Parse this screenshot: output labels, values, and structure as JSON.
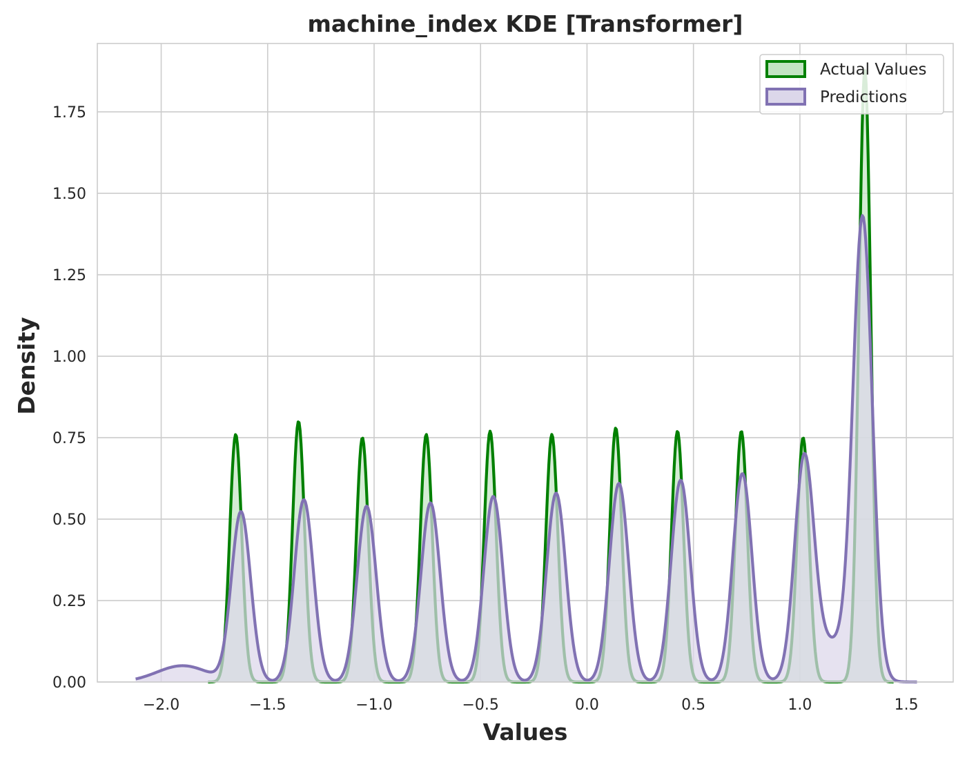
{
  "chart_data": {
    "type": "area",
    "title": "machine_index KDE [Transformer]",
    "xlabel": "Values",
    "ylabel": "Density",
    "xlim": [
      -2.3,
      1.72
    ],
    "ylim": [
      0,
      1.96
    ],
    "xticks": [
      -2.0,
      -1.5,
      -1.0,
      -0.5,
      0.0,
      0.5,
      1.0,
      1.5
    ],
    "xtick_labels": [
      "−2.0",
      "−1.5",
      "−1.0",
      "−0.5",
      "0.0",
      "0.5",
      "1.0",
      "1.5"
    ],
    "yticks": [
      0,
      0.25,
      0.5,
      0.75,
      1.0,
      1.25,
      1.5,
      1.75
    ],
    "ytick_labels": [
      "0.00",
      "0.25",
      "0.50",
      "0.75",
      "1.00",
      "1.25",
      "1.50",
      "1.75"
    ],
    "grid": true,
    "legend_position": "top-right",
    "series": [
      {
        "name": "Actual Values",
        "color": "#008000",
        "fill": "#c3e4c3",
        "x_range": [
          -1.78,
          1.44
        ],
        "peaks": [
          {
            "center": -1.65,
            "height": 0.76,
            "width": 0.028
          },
          {
            "center": -1.355,
            "height": 0.8,
            "width": 0.028
          },
          {
            "center": -1.055,
            "height": 0.75,
            "width": 0.028
          },
          {
            "center": -0.755,
            "height": 0.76,
            "width": 0.028
          },
          {
            "center": -0.455,
            "height": 0.77,
            "width": 0.028
          },
          {
            "center": -0.165,
            "height": 0.76,
            "width": 0.028
          },
          {
            "center": 0.135,
            "height": 0.78,
            "width": 0.028
          },
          {
            "center": 0.425,
            "height": 0.77,
            "width": 0.028
          },
          {
            "center": 0.725,
            "height": 0.77,
            "width": 0.028
          },
          {
            "center": 1.015,
            "height": 0.75,
            "width": 0.028
          },
          {
            "center": 1.305,
            "height": 1.88,
            "width": 0.028
          }
        ]
      },
      {
        "name": "Predictions",
        "color": "#8172b3",
        "fill": "#dcd7ea",
        "x_range": [
          -2.12,
          1.55
        ],
        "peaks": [
          {
            "center": -1.625,
            "height": 0.52,
            "width": 0.045
          },
          {
            "center": -1.33,
            "height": 0.56,
            "width": 0.045
          },
          {
            "center": -1.035,
            "height": 0.54,
            "width": 0.045
          },
          {
            "center": -0.735,
            "height": 0.55,
            "width": 0.045
          },
          {
            "center": -0.44,
            "height": 0.57,
            "width": 0.045
          },
          {
            "center": -0.145,
            "height": 0.58,
            "width": 0.045
          },
          {
            "center": 0.15,
            "height": 0.61,
            "width": 0.045
          },
          {
            "center": 0.44,
            "height": 0.62,
            "width": 0.045
          },
          {
            "center": 0.73,
            "height": 0.64,
            "width": 0.045
          },
          {
            "center": 1.02,
            "height": 0.65,
            "width": 0.045
          },
          {
            "center": 1.295,
            "height": 1.39,
            "width": 0.045
          },
          {
            "center": -1.9,
            "height": 0.05,
            "width": 0.12
          },
          {
            "center": 1.15,
            "height": 0.12,
            "width": 0.1
          }
        ]
      }
    ]
  }
}
